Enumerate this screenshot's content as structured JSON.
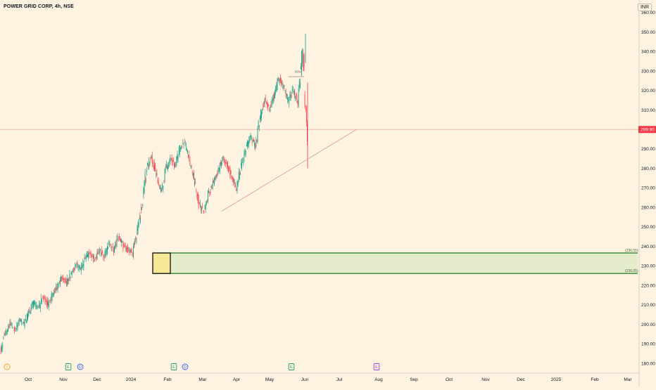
{
  "header": {
    "symbol_title": "POWER GRID CORP, 4h, NSE",
    "currency": "INR"
  },
  "colors": {
    "background": "#fdf3e0",
    "up_candle": "#089981",
    "down_candle": "#f23645",
    "price_line": "#f5a3a3",
    "price_badge": "#f23645",
    "zone_border": "#1e7b1e",
    "zone_fill": "#e5eccc",
    "box_fill": "#f7e898",
    "trendline": "#d99a9a"
  },
  "chart_data": {
    "type": "candlestick",
    "title": "POWER GRID CORP, 4h, NSE",
    "ylim": [
      176,
      362
    ],
    "y_ticks": [
      "180.00",
      "190.00",
      "200.00",
      "210.00",
      "220.00",
      "230.00",
      "240.00",
      "250.00",
      "260.00",
      "270.00",
      "280.00",
      "290.00",
      "300.00",
      "310.00",
      "320.00",
      "330.00",
      "340.00",
      "350.00",
      "360.00"
    ],
    "x_ticks": [
      "Oct",
      "Nov",
      "Dec",
      "2024",
      "Feb",
      "Mar",
      "Apr",
      "May",
      "Jun",
      "Jul",
      "Aug",
      "Sep",
      "Oct",
      "Nov",
      "Dec",
      "2025",
      "Feb",
      "Mar"
    ],
    "current_price": "299.90",
    "current_price_value": 299.9,
    "demand_zone": {
      "upper_label": "(236.55)",
      "lower_label": "(226.05)",
      "upper": 236.55,
      "lower": 226.05
    },
    "measure_label": "60%",
    "trendline": {
      "from": [
        "Mar",
        258
      ],
      "to": [
        "Jul",
        300
      ]
    },
    "event_markers": [
      {
        "label": "I",
        "month": "Sep",
        "color": "#f0a020"
      },
      {
        "label": "E",
        "month": "Nov",
        "color": "#22a36b"
      },
      {
        "label": "D",
        "month": "Nov",
        "color": "#2962ff"
      },
      {
        "label": "E",
        "month": "Feb",
        "color": "#22a36b"
      },
      {
        "label": "D",
        "month": "Feb",
        "color": "#2962ff"
      },
      {
        "label": "E",
        "month": "May",
        "color": "#22a36b"
      },
      {
        "label": "E",
        "month": "Aug",
        "color": "#a040e0"
      }
    ],
    "price_path": [
      [
        186,
        195
      ],
      [
        195,
        200
      ],
      [
        200,
        197
      ],
      [
        197,
        203
      ],
      [
        203,
        200
      ],
      [
        200,
        206
      ],
      [
        206,
        211
      ],
      [
        211,
        208
      ],
      [
        208,
        214
      ],
      [
        214,
        210
      ],
      [
        210,
        215
      ],
      [
        215,
        219
      ],
      [
        219,
        224
      ],
      [
        224,
        221
      ],
      [
        221,
        226
      ],
      [
        226,
        231
      ],
      [
        231,
        228
      ],
      [
        228,
        234
      ],
      [
        234,
        236
      ],
      [
        236,
        233
      ],
      [
        233,
        238
      ],
      [
        238,
        235
      ],
      [
        235,
        241
      ],
      [
        241,
        238
      ],
      [
        238,
        245
      ],
      [
        245,
        240
      ],
      [
        240,
        238
      ],
      [
        238,
        236
      ],
      [
        236,
        248
      ],
      [
        248,
        262
      ],
      [
        262,
        280
      ],
      [
        280,
        286
      ],
      [
        286,
        276
      ],
      [
        276,
        268
      ],
      [
        268,
        279
      ],
      [
        279,
        285
      ],
      [
        285,
        281
      ],
      [
        281,
        290
      ],
      [
        290,
        293
      ],
      [
        293,
        284
      ],
      [
        284,
        274
      ],
      [
        274,
        262
      ],
      [
        262,
        258
      ],
      [
        258,
        266
      ],
      [
        266,
        272
      ],
      [
        272,
        278
      ],
      [
        278,
        285
      ],
      [
        285,
        282
      ],
      [
        282,
        276
      ],
      [
        276,
        270
      ],
      [
        270,
        281
      ],
      [
        281,
        290
      ],
      [
        290,
        296
      ],
      [
        296,
        292
      ],
      [
        292,
        306
      ],
      [
        306,
        316
      ],
      [
        316,
        310
      ],
      [
        310,
        318
      ],
      [
        318,
        326
      ],
      [
        326,
        321
      ],
      [
        321,
        314
      ],
      [
        314,
        320
      ],
      [
        320,
        314
      ],
      [
        314,
        341
      ],
      [
        341,
        296
      ]
    ]
  }
}
